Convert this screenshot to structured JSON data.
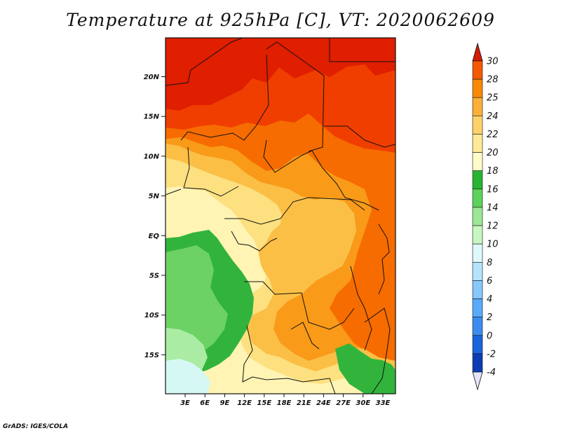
{
  "title": "Temperature at 925hPa [C], VT: 2020062609",
  "credit": "GrADS: IGES/COLA",
  "map": {
    "lat_labels": [
      "20N",
      "15N",
      "10N",
      "5N",
      "EQ",
      "5S",
      "10S",
      "15S"
    ],
    "lon_labels": [
      "3E",
      "6E",
      "9E",
      "12E",
      "15E",
      "18E",
      "21E",
      "24E",
      "27E",
      "30E",
      "33E"
    ]
  },
  "colorbar": {
    "labels": [
      "30",
      "28",
      "25",
      "24",
      "22",
      "20",
      "18",
      "16",
      "14",
      "12",
      "10",
      "8",
      "6",
      "4",
      "2",
      "0",
      "-2",
      "-4"
    ],
    "colors": {
      "top_triangle": "#d01c00",
      "bins": [
        "#ec2400",
        "#f45a00",
        "#f88808",
        "#fbb03a",
        "#fdd26a",
        "#fcea98",
        "#fefcc8",
        "#28b432",
        "#5cd25a",
        "#9ae894",
        "#c8f6c2",
        "#def8fc",
        "#b4e4fc",
        "#86c8fc",
        "#5aaafc",
        "#3c8cf0",
        "#1a64dc",
        "#0c3cb4",
        "#0c1a8c"
      ],
      "bottom_triangle": "#e6e4fa"
    }
  },
  "map_colors": {
    "t30": "#e01e00",
    "t28": "#f03e00",
    "t25": "#f66c00",
    "t24": "#f99a18",
    "t22": "#fbbf46",
    "t20": "#fde080",
    "t18": "#fff4b4",
    "t16": "#32b43c",
    "t14": "#6cd264",
    "t12": "#aaeca4",
    "t10": "#d6f8f4",
    "border": "#111111"
  }
}
